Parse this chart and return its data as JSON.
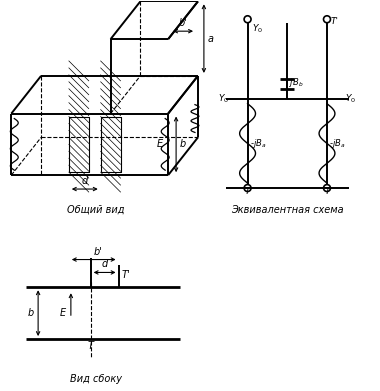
{
  "bg_color": "#ffffff",
  "label_general": "Общий вид",
  "label_equiv": "Эквивалентная схема",
  "label_side": "Вид сбоку",
  "fig_width": 3.8,
  "fig_height": 3.91,
  "dpi": 100
}
